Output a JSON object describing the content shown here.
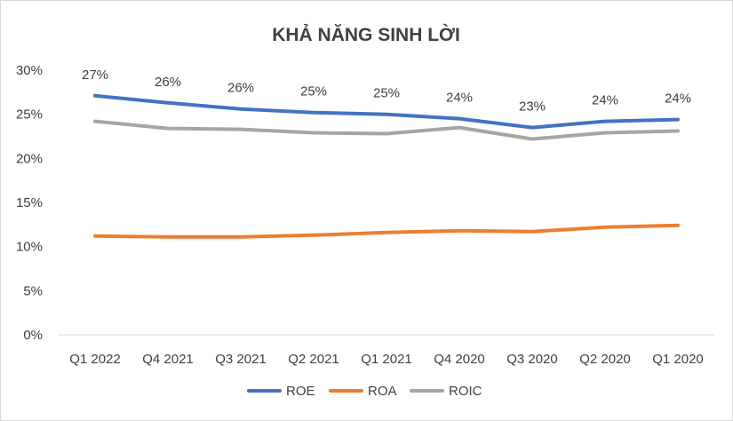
{
  "chart_data": {
    "type": "line",
    "title": "KHẢ NĂNG SINH LỜI",
    "xlabel": "",
    "ylabel": "",
    "categories": [
      "Q1 2022",
      "Q4 2021",
      "Q3 2021",
      "Q2 2021",
      "Q1 2021",
      "Q4 2020",
      "Q3 2020",
      "Q2 2020",
      "Q1 2020"
    ],
    "ylim": [
      0,
      30
    ],
    "yticks": [
      0,
      5,
      10,
      15,
      20,
      25,
      30
    ],
    "ytick_labels": [
      "0%",
      "5%",
      "10%",
      "15%",
      "20%",
      "25%",
      "30%"
    ],
    "grid": false,
    "legend_position": "bottom",
    "series": [
      {
        "name": "ROE",
        "color": "#4472c4",
        "values": [
          27.1,
          26.3,
          25.6,
          25.2,
          25.0,
          24.5,
          23.5,
          24.2,
          24.4
        ],
        "data_labels": [
          "27%",
          "26%",
          "26%",
          "25%",
          "25%",
          "24%",
          "23%",
          "24%",
          "24%"
        ]
      },
      {
        "name": "ROA",
        "color": "#ed7d31",
        "values": [
          11.2,
          11.1,
          11.1,
          11.3,
          11.6,
          11.8,
          11.7,
          12.2,
          12.4
        ]
      },
      {
        "name": "ROIC",
        "color": "#a5a5a5",
        "values": [
          24.2,
          23.4,
          23.3,
          22.9,
          22.8,
          23.5,
          22.2,
          22.9,
          23.1
        ]
      }
    ]
  }
}
